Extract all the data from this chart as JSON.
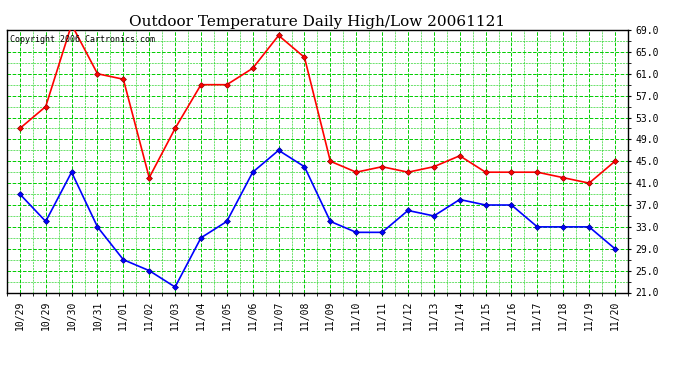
{
  "title": "Outdoor Temperature Daily High/Low 20061121",
  "copyright": "Copyright 2006 Cartronics.com",
  "x_labels": [
    "10/29",
    "10/29",
    "10/30",
    "10/31",
    "11/01",
    "11/02",
    "11/03",
    "11/04",
    "11/05",
    "11/06",
    "11/07",
    "11/08",
    "11/09",
    "11/10",
    "11/11",
    "11/12",
    "11/13",
    "11/14",
    "11/15",
    "11/16",
    "11/17",
    "11/18",
    "11/19",
    "11/20"
  ],
  "high_temps": [
    51,
    55,
    70,
    61,
    60,
    42,
    51,
    59,
    59,
    62,
    68,
    64,
    45,
    43,
    44,
    43,
    44,
    46,
    43,
    43,
    43,
    42,
    41,
    45
  ],
  "low_temps": [
    39,
    34,
    43,
    33,
    27,
    25,
    22,
    31,
    34,
    43,
    47,
    44,
    34,
    32,
    32,
    36,
    35,
    38,
    37,
    37,
    33,
    33,
    33,
    29
  ],
  "high_color": "#ff0000",
  "low_color": "#0000ff",
  "bg_color": "#ffffff",
  "grid_color": "#00cc00",
  "ymin": 21.0,
  "ymax": 69.0,
  "yticks": [
    21.0,
    25.0,
    29.0,
    33.0,
    37.0,
    41.0,
    45.0,
    49.0,
    53.0,
    57.0,
    61.0,
    65.0,
    69.0
  ],
  "marker": "D",
  "markersize": 3,
  "linewidth": 1.2,
  "title_fontsize": 11,
  "tick_fontsize": 7,
  "copyright_fontsize": 6
}
